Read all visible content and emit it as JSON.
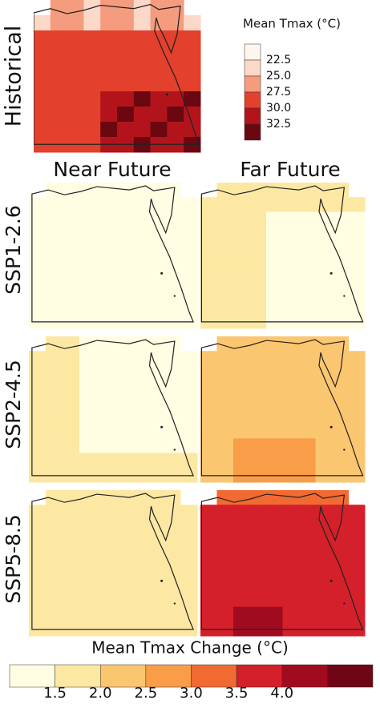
{
  "historical_label": "Historical",
  "columns": [
    "Near Future",
    "Far Future"
  ],
  "rows": [
    "SSP1-2.6",
    "SSP2-4.5",
    "SSP5-8.5"
  ],
  "top_legend": {
    "title": "Mean Tmax (°C)",
    "labels": [
      "22.5",
      "25.0",
      "27.5",
      "30.0",
      "32.5"
    ],
    "colors": [
      "#fdf5ee",
      "#fbd8c8",
      "#f59c7e",
      "#e3402d",
      "#b3141c",
      "#6b0711"
    ]
  },
  "bottom_legend": {
    "title": "Mean Tmax Change (°C)",
    "labels": [
      "1.5",
      "2.0",
      "2.5",
      "3.0",
      "3.5",
      "4.0"
    ],
    "colors": [
      "#fffde2",
      "#fde8a3",
      "#fbc670",
      "#f99d48",
      "#f16a32",
      "#d4202a",
      "#a10b20",
      "#6e0616"
    ]
  }
}
